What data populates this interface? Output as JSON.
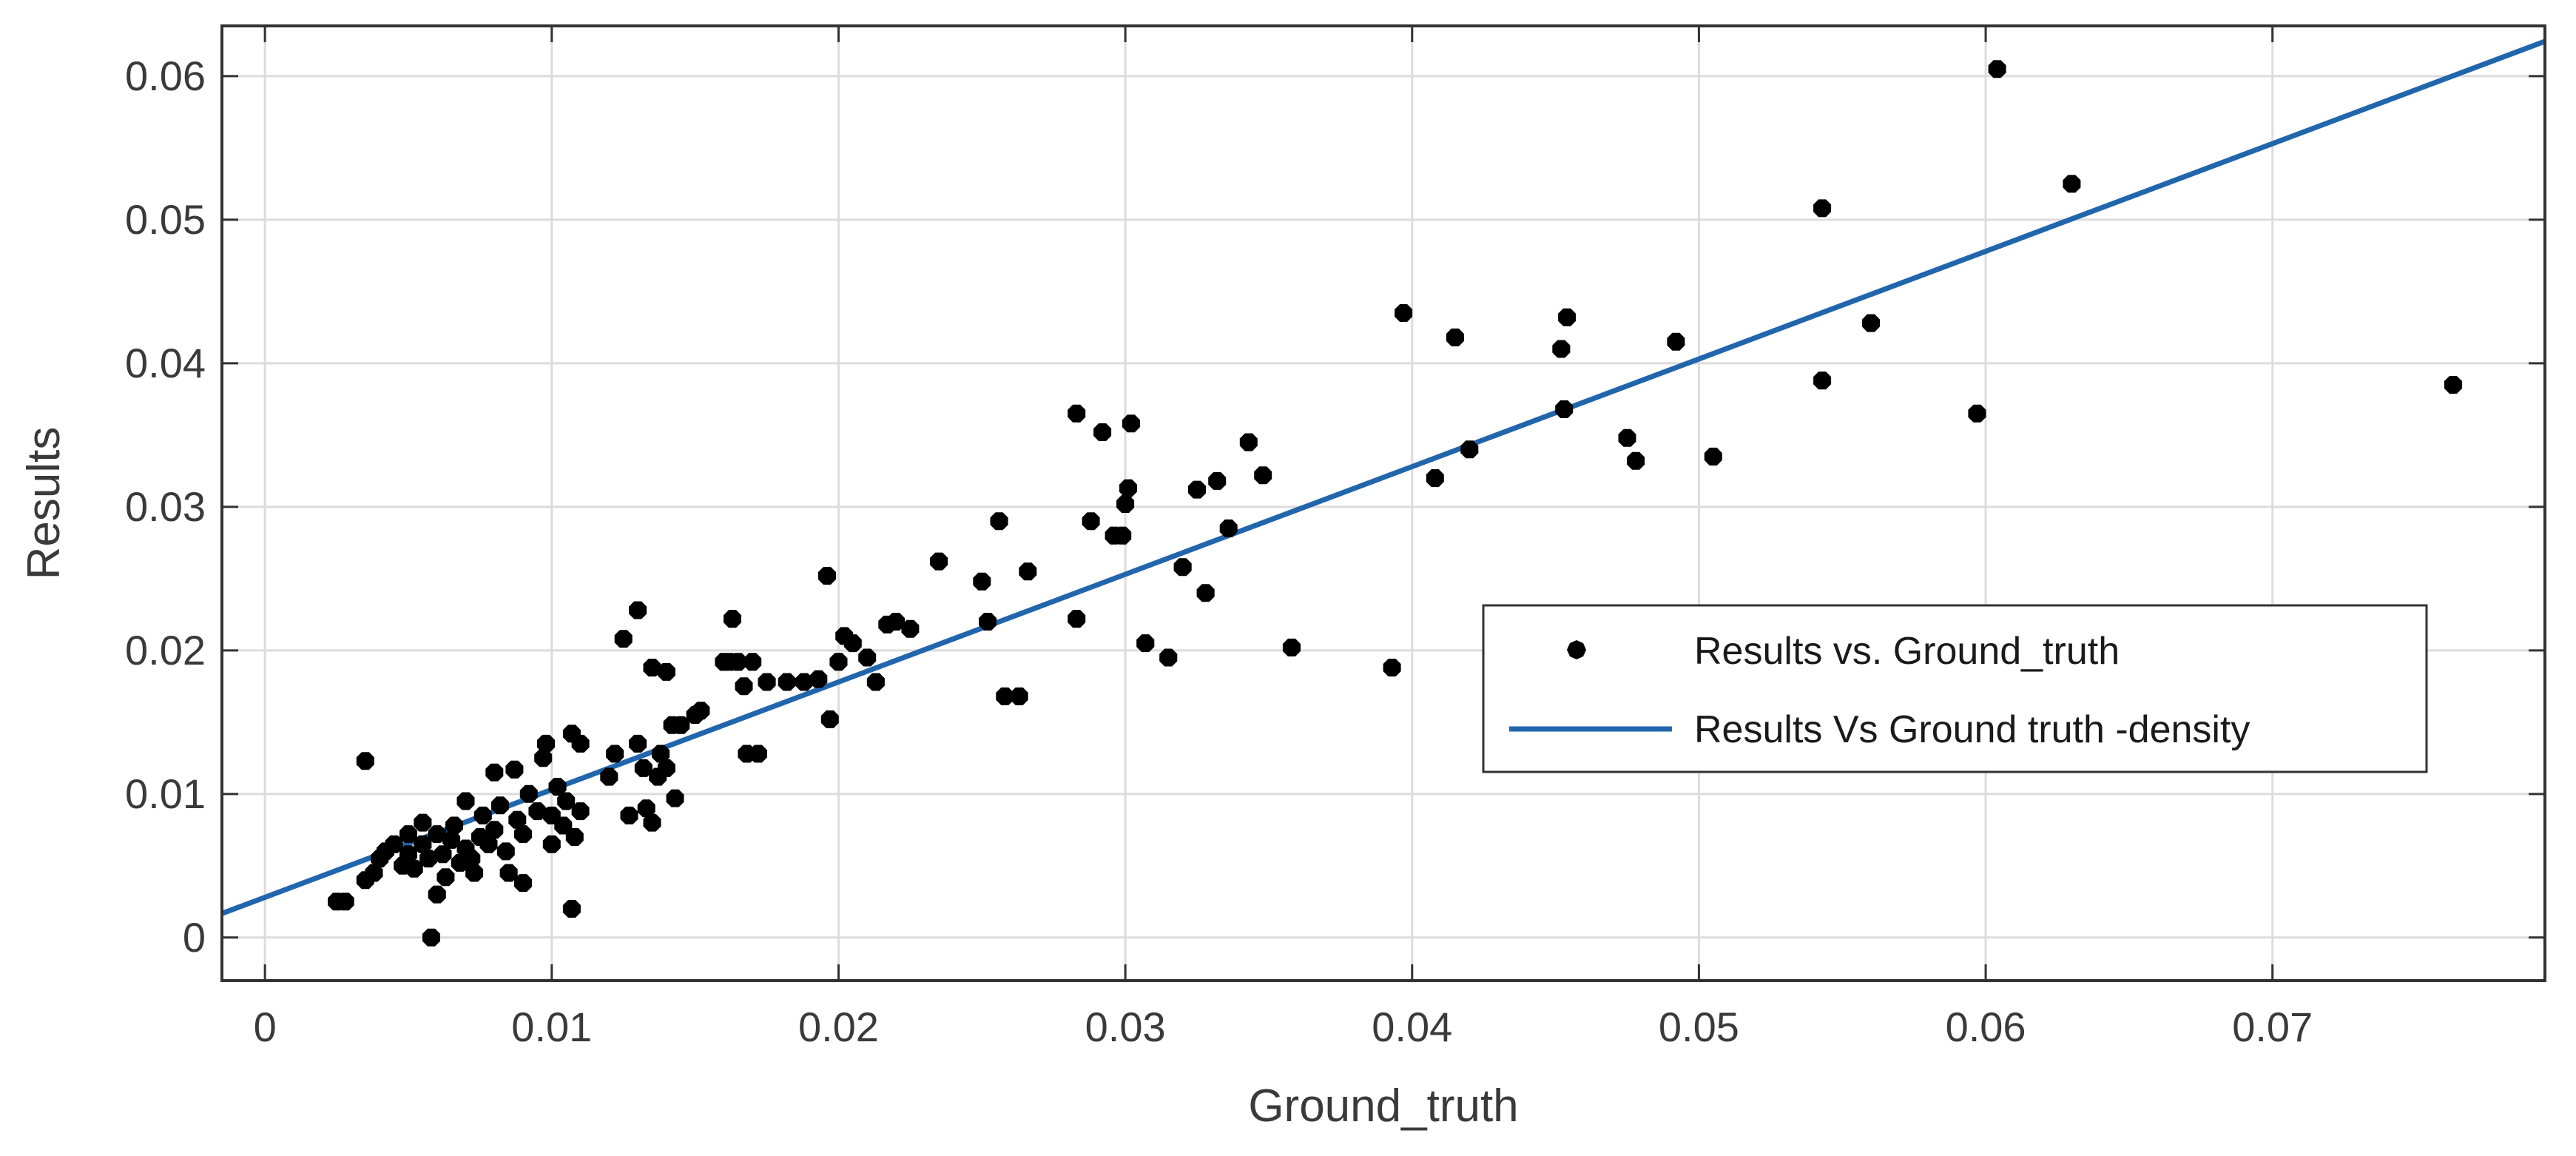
{
  "chart_data": {
    "type": "scatter",
    "title": "",
    "xlabel": "Ground_truth",
    "ylabel": "Results",
    "xlim": [
      -0.0015,
      0.0795
    ],
    "ylim": [
      -0.003,
      0.0635
    ],
    "x_ticks": [
      "0",
      "0.01",
      "0.02",
      "0.03",
      "0.04",
      "0.05",
      "0.06",
      "0.07"
    ],
    "x_tick_values": [
      0,
      0.01,
      0.02,
      0.03,
      0.04,
      0.05,
      0.06,
      0.07
    ],
    "y_ticks": [
      "0",
      "0.01",
      "0.02",
      "0.03",
      "0.04",
      "0.05",
      "0.06"
    ],
    "y_tick_values": [
      0,
      0.01,
      0.02,
      0.03,
      0.04,
      0.05,
      0.06
    ],
    "grid": true,
    "legend_position": "right",
    "series": [
      {
        "name": "Results vs. Ground_truth",
        "kind": "scatter",
        "color": "#000000",
        "points": [
          [
            0.0025,
            0.0025
          ],
          [
            0.0028,
            0.0025
          ],
          [
            0.0035,
            0.0123
          ],
          [
            0.0035,
            0.004
          ],
          [
            0.0038,
            0.0045
          ],
          [
            0.004,
            0.0055
          ],
          [
            0.0042,
            0.006
          ],
          [
            0.0045,
            0.0065
          ],
          [
            0.0048,
            0.005
          ],
          [
            0.005,
            0.0072
          ],
          [
            0.005,
            0.0058
          ],
          [
            0.0052,
            0.0048
          ],
          [
            0.0055,
            0.008
          ],
          [
            0.0055,
            0.0065
          ],
          [
            0.0057,
            0.0055
          ],
          [
            0.0058,
            0.0
          ],
          [
            0.006,
            0.0072
          ],
          [
            0.006,
            0.003
          ],
          [
            0.0062,
            0.0058
          ],
          [
            0.0063,
            0.0042
          ],
          [
            0.0065,
            0.0068
          ],
          [
            0.0066,
            0.0078
          ],
          [
            0.0068,
            0.0052
          ],
          [
            0.007,
            0.0062
          ],
          [
            0.007,
            0.0095
          ],
          [
            0.0072,
            0.0055
          ],
          [
            0.0073,
            0.0045
          ],
          [
            0.0075,
            0.007
          ],
          [
            0.0076,
            0.0085
          ],
          [
            0.0078,
            0.0065
          ],
          [
            0.008,
            0.0115
          ],
          [
            0.008,
            0.0075
          ],
          [
            0.0082,
            0.0092
          ],
          [
            0.0084,
            0.006
          ],
          [
            0.0085,
            0.0045
          ],
          [
            0.0087,
            0.0117
          ],
          [
            0.0088,
            0.0082
          ],
          [
            0.009,
            0.0038
          ],
          [
            0.009,
            0.0072
          ],
          [
            0.0092,
            0.01
          ],
          [
            0.0095,
            0.0088
          ],
          [
            0.0097,
            0.0125
          ],
          [
            0.0098,
            0.0135
          ],
          [
            0.01,
            0.0065
          ],
          [
            0.01,
            0.0085
          ],
          [
            0.0102,
            0.0105
          ],
          [
            0.0104,
            0.0078
          ],
          [
            0.0105,
            0.0095
          ],
          [
            0.0107,
            0.0142
          ],
          [
            0.0107,
            0.002
          ],
          [
            0.0108,
            0.007
          ],
          [
            0.011,
            0.0135
          ],
          [
            0.011,
            0.0088
          ],
          [
            0.012,
            0.0112
          ],
          [
            0.0122,
            0.0128
          ],
          [
            0.0125,
            0.0208
          ],
          [
            0.0127,
            0.0085
          ],
          [
            0.013,
            0.0228
          ],
          [
            0.013,
            0.0135
          ],
          [
            0.0132,
            0.0118
          ],
          [
            0.0133,
            0.009
          ],
          [
            0.0135,
            0.008
          ],
          [
            0.0135,
            0.0188
          ],
          [
            0.0137,
            0.0112
          ],
          [
            0.0138,
            0.0128
          ],
          [
            0.014,
            0.0185
          ],
          [
            0.014,
            0.0118
          ],
          [
            0.0142,
            0.0148
          ],
          [
            0.0143,
            0.0097
          ],
          [
            0.0145,
            0.0148
          ],
          [
            0.015,
            0.0155
          ],
          [
            0.0152,
            0.0158
          ],
          [
            0.016,
            0.0192
          ],
          [
            0.0162,
            0.0192
          ],
          [
            0.0163,
            0.0222
          ],
          [
            0.0165,
            0.0192
          ],
          [
            0.0167,
            0.0175
          ],
          [
            0.017,
            0.0192
          ],
          [
            0.0168,
            0.0128
          ],
          [
            0.0172,
            0.0128
          ],
          [
            0.0175,
            0.0178
          ],
          [
            0.0182,
            0.0178
          ],
          [
            0.0188,
            0.0178
          ],
          [
            0.0193,
            0.018
          ],
          [
            0.0196,
            0.0252
          ],
          [
            0.0197,
            0.0152
          ],
          [
            0.02,
            0.0192
          ],
          [
            0.0202,
            0.021
          ],
          [
            0.0205,
            0.0205
          ],
          [
            0.021,
            0.0195
          ],
          [
            0.0213,
            0.0178
          ],
          [
            0.0217,
            0.0218
          ],
          [
            0.022,
            0.022
          ],
          [
            0.0225,
            0.0215
          ],
          [
            0.0235,
            0.0262
          ],
          [
            0.025,
            0.0248
          ],
          [
            0.0252,
            0.022
          ],
          [
            0.0256,
            0.029
          ],
          [
            0.0258,
            0.0168
          ],
          [
            0.0263,
            0.0168
          ],
          [
            0.0266,
            0.0255
          ],
          [
            0.0283,
            0.0365
          ],
          [
            0.0283,
            0.0222
          ],
          [
            0.0288,
            0.029
          ],
          [
            0.0292,
            0.0352
          ],
          [
            0.0296,
            0.028
          ],
          [
            0.0299,
            0.028
          ],
          [
            0.03,
            0.0302
          ],
          [
            0.0301,
            0.0313
          ],
          [
            0.0302,
            0.0358
          ],
          [
            0.0307,
            0.0205
          ],
          [
            0.0315,
            0.0195
          ],
          [
            0.032,
            0.0258
          ],
          [
            0.0325,
            0.0312
          ],
          [
            0.0328,
            0.024
          ],
          [
            0.0332,
            0.0318
          ],
          [
            0.0336,
            0.0285
          ],
          [
            0.0343,
            0.0345
          ],
          [
            0.0348,
            0.0322
          ],
          [
            0.0358,
            0.0202
          ],
          [
            0.0393,
            0.0188
          ],
          [
            0.0397,
            0.0435
          ],
          [
            0.0408,
            0.032
          ],
          [
            0.0415,
            0.0418
          ],
          [
            0.042,
            0.034
          ],
          [
            0.0452,
            0.041
          ],
          [
            0.0453,
            0.0368
          ],
          [
            0.0454,
            0.0432
          ],
          [
            0.0475,
            0.0348
          ],
          [
            0.0478,
            0.0332
          ],
          [
            0.0492,
            0.0415
          ],
          [
            0.0505,
            0.0335
          ],
          [
            0.0543,
            0.0508
          ],
          [
            0.0543,
            0.0388
          ],
          [
            0.056,
            0.0428
          ],
          [
            0.0597,
            0.0365
          ],
          [
            0.0604,
            0.0605
          ],
          [
            0.063,
            0.0525
          ],
          [
            0.0763,
            0.0385
          ]
        ]
      },
      {
        "name": "Results Vs Ground truth -density",
        "kind": "line",
        "color": "#2166ac",
        "intercept": 0.0028,
        "slope": 0.75
      }
    ]
  }
}
